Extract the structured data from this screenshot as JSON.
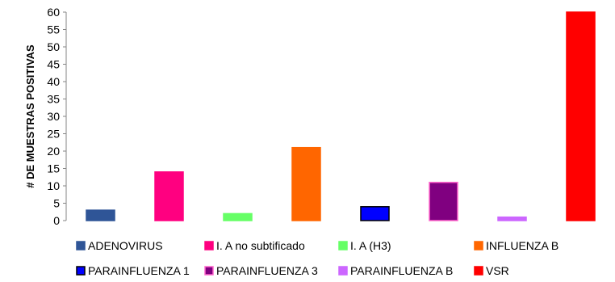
{
  "chart_data": {
    "type": "bar",
    "title": "",
    "xlabel": "",
    "ylabel": "# DE MUESTRAS POSITIVAS",
    "ylim": [
      0,
      60
    ],
    "yticks": [
      0,
      5,
      10,
      15,
      20,
      25,
      30,
      35,
      40,
      45,
      50,
      55,
      60
    ],
    "grid": false,
    "legend_position": "bottom",
    "categories": [
      "ADENOVIRUS",
      "I. A no subtificado",
      "I. A (H3)",
      "INFLUENZA B",
      "PARAINFLUENZA 1",
      "PARAINFLUENZA 3",
      "PARAINFLUENZA B",
      "VSR"
    ],
    "values": [
      3,
      14,
      2,
      21,
      4,
      11,
      1,
      60
    ],
    "colors": [
      "#2F5597",
      "#FF0080",
      "#66FF66",
      "#FF6600",
      "#0000FF",
      "#800080",
      "#CC66FF",
      "#FF0000"
    ],
    "borders": [
      "#2F5597",
      "#FF0080",
      "#66FF66",
      "#FF6600",
      "#000000",
      "#FF66CC",
      "#CC66FF",
      "#FF0000"
    ]
  }
}
